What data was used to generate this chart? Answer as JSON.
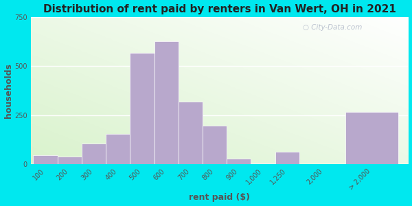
{
  "title": "Distribution of rent paid by renters in Van Wert, OH in 2021",
  "xlabel": "rent paid ($)",
  "ylabel": "households",
  "background_outer": "#00e8ef",
  "bar_color": "#b8a8cc",
  "bar_edge_color": "#ffffff",
  "ylim": [
    0,
    750
  ],
  "yticks": [
    0,
    250,
    500,
    750
  ],
  "categories": [
    "100",
    "200",
    "300",
    "400",
    "500",
    "600",
    "700",
    "800",
    "900",
    "1,000",
    "1,250",
    "2,000",
    "> 2,000"
  ],
  "values": [
    45,
    38,
    105,
    155,
    565,
    625,
    320,
    195,
    28,
    5,
    65,
    0,
    265
  ],
  "watermark": "City-Data.com",
  "title_fontsize": 11,
  "axis_label_fontsize": 9,
  "tick_fontsize": 7
}
